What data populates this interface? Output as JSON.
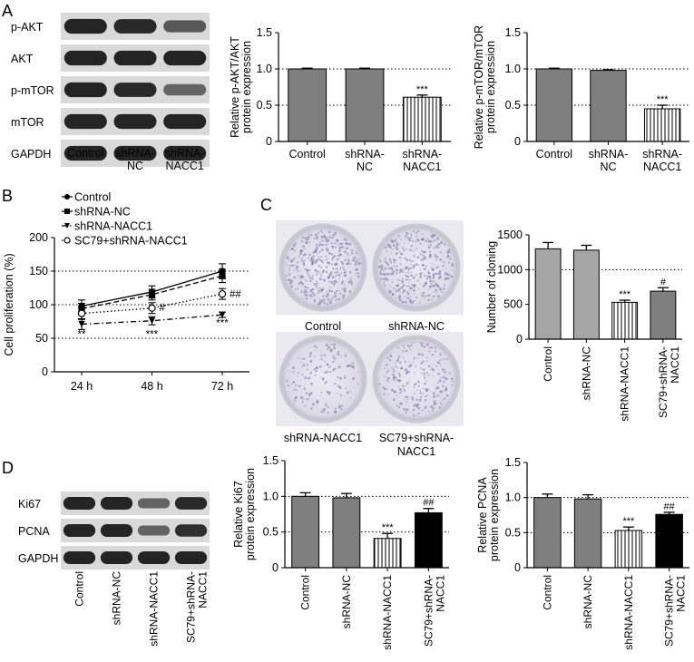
{
  "panels": {
    "A": {
      "letter": "A",
      "blot": {
        "rows": [
          {
            "label": "p-AKT",
            "intensity": [
              1.0,
              0.95,
              0.55
            ]
          },
          {
            "label": "AKT",
            "intensity": [
              1.0,
              1.0,
              1.0
            ]
          },
          {
            "label": "p-mTOR",
            "intensity": [
              1.0,
              0.95,
              0.45
            ]
          },
          {
            "label": "mTOR",
            "intensity": [
              1.0,
              1.0,
              1.0
            ]
          },
          {
            "label": "GAPDH",
            "intensity": [
              1.0,
              1.0,
              1.0
            ]
          }
        ],
        "lanes": [
          "Control",
          "shRNA-\nNC",
          "shRNA-\nNACC1"
        ]
      }
    },
    "B": {
      "letter": "B"
    },
    "C": {
      "letter": "C",
      "plates": [
        "Control",
        "shRNA-NC",
        "shRNA-NACC1",
        "SC79+shRNA-\nNACC1"
      ],
      "plate_density": [
        0.9,
        0.9,
        0.35,
        0.55
      ]
    },
    "D": {
      "letter": "D",
      "blot": {
        "rows": [
          {
            "label": "Ki67",
            "intensity": [
              1.0,
              1.0,
              0.45,
              0.95
            ]
          },
          {
            "label": "PCNA",
            "intensity": [
              1.0,
              1.0,
              0.45,
              0.9
            ]
          },
          {
            "label": "GAPDH",
            "intensity": [
              1.0,
              1.0,
              1.0,
              1.0
            ]
          }
        ],
        "lanes": [
          "Control",
          "shRNA-NC",
          "shRNA-NACC1",
          "SC79+shRNA-\nNACC1"
        ]
      }
    }
  },
  "chart_data": [
    {
      "id": "pakt",
      "type": "bar",
      "ylabel": "Relative p-AKT/AKT\nprotein expression",
      "categories": [
        "Control",
        "shRNA-\nNC",
        "shRNA-\nNACC1"
      ],
      "values": [
        1.0,
        1.0,
        0.61
      ],
      "errors": [
        0.01,
        0.01,
        0.03
      ],
      "annotations": [
        "",
        "",
        "***"
      ],
      "fills": [
        "gray",
        "gray",
        "stripes"
      ],
      "ylim": [
        0,
        1.5
      ],
      "yticks": [
        0,
        0.5,
        1.0,
        1.5
      ],
      "ytick_labels": [
        "0",
        "0.5",
        "1.0",
        "1.5"
      ],
      "reference_lines": [
        0.5,
        1.0
      ],
      "rotated_xlabels": false
    },
    {
      "id": "pmtor",
      "type": "bar",
      "ylabel": "Relative p-mTOR/mTOR\nprotein expression",
      "categories": [
        "Control",
        "shRNA-\nNC",
        "shRNA-\nNACC1"
      ],
      "values": [
        1.0,
        0.98,
        0.45
      ],
      "errors": [
        0.01,
        0.01,
        0.05
      ],
      "annotations": [
        "",
        "",
        "***"
      ],
      "fills": [
        "gray",
        "gray",
        "stripes"
      ],
      "ylim": [
        0,
        1.5
      ],
      "yticks": [
        0,
        0.5,
        1.0,
        1.5
      ],
      "ytick_labels": [
        "0",
        "0.5",
        "1.0",
        "1.5"
      ],
      "reference_lines": [
        0.5,
        1.0
      ],
      "rotated_xlabels": false
    },
    {
      "id": "prolif",
      "type": "line",
      "ylabel": "Cell proliferation (%)",
      "x": [
        "24 h",
        "48 h",
        "72 h"
      ],
      "ylim": [
        0,
        200
      ],
      "yticks": [
        0,
        50,
        100,
        150,
        200
      ],
      "ytick_labels": [
        "0",
        "50",
        "100",
        "150",
        "200"
      ],
      "reference_lines": [
        50,
        100,
        150
      ],
      "series": [
        {
          "name": "Control",
          "values": [
            98,
            119,
            150
          ],
          "errors": [
            9,
            9,
            11
          ],
          "marker": "circle-filled",
          "dash": ""
        },
        {
          "name": "shRNA-NC",
          "values": [
            94,
            115,
            143
          ],
          "errors": [
            8,
            8,
            10
          ],
          "marker": "square",
          "dash": "6,3"
        },
        {
          "name": "shRNA-NACC1",
          "values": [
            71,
            76,
            85
          ],
          "errors": [
            8,
            6,
            4
          ],
          "marker": "triangle",
          "dash": "6,3,1.5,3"
        },
        {
          "name": "SC79+shRNA-NACC1",
          "values": [
            87,
            95,
            116
          ],
          "errors": [
            9,
            8,
            8
          ],
          "marker": "circle-open",
          "dash": "1.5,2.5"
        }
      ],
      "annotations": [
        {
          "text": "**",
          "x": "24 h",
          "y": 56
        },
        {
          "text": "***",
          "x": "48 h",
          "y": 56
        },
        {
          "text": "***",
          "x": "72 h",
          "y": 73
        },
        {
          "text": "#",
          "x": "48 h",
          "y": 96
        },
        {
          "text": "##",
          "x": "72 h",
          "y": 116
        }
      ]
    },
    {
      "id": "cloning",
      "type": "bar",
      "ylabel": "Number of cloning",
      "categories": [
        "Control",
        "shRNA-NC",
        "shRNA-NACC1",
        "SC79+shRNA-\nNACC1"
      ],
      "values": [
        1300,
        1280,
        530,
        690
      ],
      "errors": [
        90,
        70,
        30,
        50
      ],
      "annotations": [
        "",
        "",
        "***",
        "#"
      ],
      "fills": [
        "lightgray",
        "lightgray",
        "stripes",
        "gray"
      ],
      "ylim": [
        0,
        1500
      ],
      "yticks": [
        0,
        500,
        1000,
        1500
      ],
      "ytick_labels": [
        "0",
        "500",
        "1000",
        "1500"
      ],
      "reference_lines": [
        1000
      ],
      "rotated_xlabels": true
    },
    {
      "id": "ki67",
      "type": "bar",
      "ylabel": "Relative Ki67\nprotein expression",
      "categories": [
        "Control",
        "shRNA-NC",
        "shRNA-NACC1",
        "SC79+shRNA-\nNACC1"
      ],
      "values": [
        1.0,
        0.98,
        0.41,
        0.77
      ],
      "errors": [
        0.05,
        0.06,
        0.07,
        0.06
      ],
      "annotations": [
        "",
        "",
        "***",
        "##"
      ],
      "fills": [
        "gray",
        "gray",
        "stripes",
        "black"
      ],
      "ylim": [
        0,
        1.5
      ],
      "yticks": [
        0,
        0.5,
        1.0,
        1.5
      ],
      "ytick_labels": [
        "0",
        "0.5",
        "1.0",
        "1.5"
      ],
      "reference_lines": [
        0.5,
        1.0
      ],
      "rotated_xlabels": true
    },
    {
      "id": "pcna",
      "type": "bar",
      "ylabel": "Relative PCNA\nprotein expression",
      "categories": [
        "Control",
        "shRNA-NC",
        "shRNA-NACC1",
        "SC79+shRNA-\nNACC1"
      ],
      "values": [
        1.0,
        0.98,
        0.53,
        0.76
      ],
      "errors": [
        0.05,
        0.06,
        0.05,
        0.03
      ],
      "annotations": [
        "",
        "",
        "***",
        "##"
      ],
      "fills": [
        "gray",
        "gray",
        "stripes",
        "black"
      ],
      "ylim": [
        0,
        1.5
      ],
      "yticks": [
        0,
        0.5,
        1.0,
        1.5
      ],
      "ytick_labels": [
        "0",
        "0.5",
        "1.0",
        "1.5"
      ],
      "reference_lines": [
        0.5,
        1.0
      ],
      "rotated_xlabels": true
    }
  ],
  "colors": {
    "gray": "#7f7f7f",
    "lightgray": "#a6a6a6",
    "black": "#000000",
    "band": "#1a1a1a",
    "plate_rim": "#c9cad2",
    "plate_inner": "#e6e6ee",
    "colony": "#7b6fa6"
  }
}
